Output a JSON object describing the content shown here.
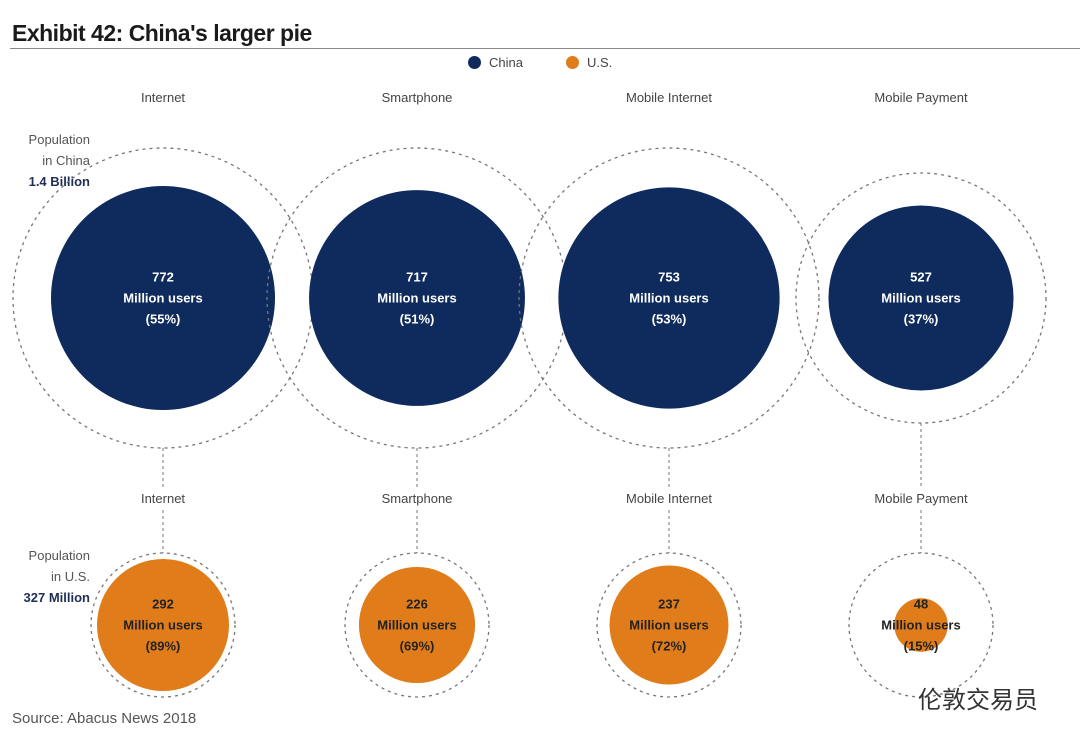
{
  "chart_data": {
    "type": "bubble",
    "title": "Exhibit 42: China's larger pie",
    "legend": [
      {
        "name": "China",
        "color": "#0f2a5c"
      },
      {
        "name": "U.S.",
        "color": "#e07c1a"
      }
    ],
    "china": {
      "population_label": [
        "Population",
        "in China"
      ],
      "population": "1.4 Billion",
      "population_millions": 1400,
      "items": [
        {
          "category": "Internet",
          "value": "772",
          "unit": "Million users",
          "pct": "(55%)",
          "v": 772
        },
        {
          "category": "Smartphone",
          "value": "717",
          "unit": "Million users",
          "pct": "(51%)",
          "v": 717
        },
        {
          "category": "Mobile Internet",
          "value": "753",
          "unit": "Million users",
          "pct": "(53%)",
          "v": 753
        },
        {
          "category": "Mobile Payment",
          "value": "527",
          "unit": "Million users",
          "pct": "(37%)",
          "v": 527
        }
      ]
    },
    "us": {
      "population_label": [
        "Population",
        "in U.S."
      ],
      "population": "327 Million",
      "population_millions": 327,
      "items": [
        {
          "category": "Internet",
          "value": "292",
          "unit": "Million users",
          "pct": "(89%)",
          "v": 292
        },
        {
          "category": "Smartphone",
          "value": "226",
          "unit": "Million users",
          "pct": "(69%)",
          "v": 226
        },
        {
          "category": "Mobile Internet",
          "value": "237",
          "unit": "Million users",
          "pct": "(72%)",
          "v": 237
        },
        {
          "category": "Mobile Payment",
          "value": "48",
          "unit": "Million users",
          "pct": "(15%)",
          "v": 48
        }
      ]
    },
    "source": "Source: Abacus News 2018"
  },
  "watermark": "伦敦交易员"
}
